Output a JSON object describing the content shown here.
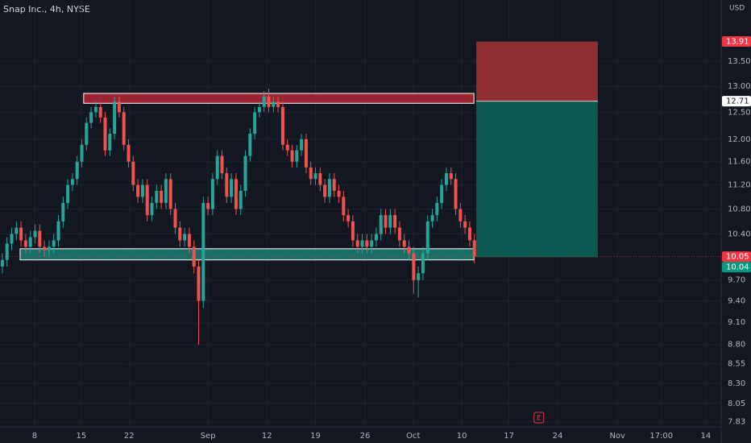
{
  "chart_data": {
    "type": "candlestick",
    "title": "Snap Inc., 4h, NYSE",
    "currency": "USD",
    "log_scale": true,
    "grid": true,
    "up_color": "#26a69a",
    "down_color": "#ef5350",
    "ylim": [
      7.77,
      14.81
    ],
    "yticks": [
      {
        "value": 13.5,
        "label": "13.50"
      },
      {
        "value": 13,
        "label": "13.00"
      },
      {
        "value": 12.5,
        "label": "12.50"
      },
      {
        "value": 12,
        "label": "12.00"
      },
      {
        "value": 11.6,
        "label": "11.60"
      },
      {
        "value": 11.2,
        "label": "11.20"
      },
      {
        "value": 10.8,
        "label": "10.80"
      },
      {
        "value": 10.4,
        "label": "10.40"
      },
      {
        "value": 9.7,
        "label": "9.70"
      },
      {
        "value": 9.4,
        "label": "9.40"
      },
      {
        "value": 9.1,
        "label": "9.10"
      },
      {
        "value": 8.8,
        "label": "8.80"
      },
      8.55,
      {
        "value": 8.3,
        "label": "8.30"
      },
      8.05,
      7.83
    ],
    "xlim": [
      -0.5,
      153.8
    ],
    "xticks": [
      {
        "value": 6.9,
        "label": "8"
      },
      {
        "value": 16.9,
        "label": "15"
      },
      {
        "value": 27.1,
        "label": "22"
      },
      {
        "value": 44,
        "label": "Sep"
      },
      {
        "value": 56.6,
        "label": "12"
      },
      {
        "value": 67,
        "label": "19"
      },
      {
        "value": 77.6,
        "label": "26"
      },
      {
        "value": 87.9,
        "label": "Oct"
      },
      {
        "value": 98.3,
        "label": "10"
      },
      {
        "value": 108.4,
        "label": "17"
      },
      {
        "value": 118.8,
        "label": "24"
      },
      {
        "value": 131.6,
        "label": "Nov"
      },
      {
        "value": 141,
        "label": "17:00"
      },
      {
        "value": 150.5,
        "label": "14"
      }
    ],
    "candles": {
      "open": [
        9.9,
        10.0,
        10.25,
        10.4,
        10.5,
        10.3,
        10.2,
        10.35,
        10.45,
        10.2,
        10.15,
        10.2,
        10.3,
        10.6,
        10.9,
        11.2,
        11.3,
        11.6,
        11.9,
        12.3,
        12.5,
        12.6,
        12.4,
        11.8,
        12.1,
        12.7,
        12.5,
        11.9,
        11.6,
        11.2,
        11.0,
        11.2,
        10.7,
        10.9,
        11.1,
        10.9,
        11.3,
        10.8,
        10.5,
        10.3,
        10.4,
        10.2,
        9.9,
        9.4,
        10.9,
        10.8,
        11.3,
        11.7,
        11.4,
        11.0,
        11.3,
        10.8,
        11.1,
        11.7,
        12.1,
        12.5,
        12.6,
        12.8,
        12.6,
        12.7,
        12.6,
        11.9,
        11.8,
        11.6,
        11.8,
        12.0,
        11.5,
        11.3,
        11.4,
        11.2,
        11.0,
        11.3,
        11.1,
        11.0,
        10.7,
        10.6,
        10.3,
        10.2,
        10.3,
        10.2,
        10.3,
        10.4,
        10.7,
        10.5,
        10.7,
        10.5,
        10.3,
        10.2,
        10.1,
        9.7,
        9.8,
        10.1,
        10.6,
        10.7,
        10.9,
        11.2,
        11.4,
        11.3,
        10.8,
        10.6,
        10.5,
        10.3
      ],
      "high": [
        10.1,
        10.35,
        10.5,
        10.6,
        10.6,
        10.4,
        10.45,
        10.55,
        10.55,
        10.3,
        10.3,
        10.4,
        10.7,
        11.0,
        11.3,
        11.4,
        11.7,
        12.0,
        12.4,
        12.6,
        12.7,
        12.7,
        12.5,
        12.2,
        12.8,
        12.8,
        12.6,
        12.0,
        11.7,
        11.3,
        11.3,
        11.3,
        11.0,
        11.2,
        11.2,
        11.4,
        11.4,
        10.9,
        10.6,
        10.5,
        10.5,
        10.3,
        10.0,
        11.0,
        11.0,
        11.4,
        11.8,
        11.8,
        11.5,
        11.4,
        11.4,
        11.2,
        11.8,
        12.2,
        12.6,
        12.7,
        12.9,
        12.95,
        12.8,
        12.8,
        12.7,
        12.0,
        11.9,
        11.9,
        12.1,
        12.1,
        11.6,
        11.5,
        11.5,
        11.3,
        11.4,
        11.4,
        11.2,
        11.1,
        10.8,
        10.7,
        10.4,
        10.4,
        10.4,
        10.4,
        10.5,
        10.8,
        10.8,
        10.8,
        10.8,
        10.6,
        10.4,
        10.3,
        10.2,
        9.9,
        10.2,
        10.7,
        10.8,
        11.0,
        11.3,
        11.5,
        11.5,
        11.4,
        10.9,
        10.7,
        10.6,
        10.4
      ],
      "low": [
        9.8,
        9.9,
        10.15,
        10.3,
        10.2,
        10.1,
        10.1,
        10.25,
        10.1,
        10.05,
        10.05,
        10.1,
        10.2,
        10.5,
        10.8,
        11.1,
        11.2,
        11.5,
        11.8,
        12.2,
        12.4,
        12.3,
        11.7,
        11.7,
        12.0,
        12.4,
        11.8,
        11.5,
        11.1,
        10.9,
        10.9,
        10.6,
        10.6,
        10.8,
        10.8,
        10.8,
        10.7,
        10.4,
        10.2,
        10.2,
        10.1,
        9.8,
        8.8,
        9.3,
        10.7,
        10.7,
        11.2,
        11.3,
        10.9,
        10.9,
        10.7,
        10.7,
        11.0,
        11.6,
        12.0,
        12.4,
        12.5,
        12.5,
        12.5,
        12.5,
        11.8,
        11.7,
        11.5,
        11.5,
        11.7,
        11.4,
        11.2,
        11.2,
        11.1,
        10.9,
        10.9,
        11.0,
        10.9,
        10.6,
        10.5,
        10.2,
        10.1,
        10.1,
        10.1,
        10.1,
        10.2,
        10.3,
        10.4,
        10.4,
        10.4,
        10.2,
        10.1,
        10.0,
        9.5,
        9.45,
        9.7,
        10.0,
        10.5,
        10.6,
        10.8,
        11.1,
        11.2,
        10.7,
        10.5,
        10.4,
        10.2,
        9.95
      ],
      "close": [
        10.0,
        10.25,
        10.4,
        10.5,
        10.3,
        10.2,
        10.35,
        10.45,
        10.2,
        10.15,
        10.2,
        10.3,
        10.6,
        10.9,
        11.2,
        11.3,
        11.6,
        11.9,
        12.3,
        12.5,
        12.6,
        12.4,
        11.8,
        12.1,
        12.7,
        12.5,
        11.9,
        11.6,
        11.2,
        11.0,
        11.2,
        10.7,
        10.9,
        11.1,
        10.9,
        11.3,
        10.8,
        10.5,
        10.3,
        10.4,
        10.2,
        9.9,
        9.4,
        10.9,
        10.8,
        11.3,
        11.7,
        11.4,
        11.0,
        11.3,
        10.8,
        11.1,
        11.7,
        12.1,
        12.5,
        12.6,
        12.8,
        12.6,
        12.7,
        12.6,
        11.9,
        11.8,
        11.6,
        11.8,
        12.0,
        11.5,
        11.3,
        11.4,
        11.2,
        11.0,
        11.3,
        11.1,
        11.0,
        10.7,
        10.6,
        10.3,
        10.2,
        10.3,
        10.2,
        10.3,
        10.4,
        10.7,
        10.5,
        10.7,
        10.5,
        10.3,
        10.2,
        10.1,
        9.7,
        9.8,
        10.1,
        10.6,
        10.7,
        10.9,
        11.2,
        11.4,
        11.3,
        10.8,
        10.6,
        10.5,
        10.3,
        10.05
      ]
    },
    "zones": [
      {
        "start": 17.4,
        "end": 100.9,
        "low": 12.67,
        "high": 12.86,
        "color": "#b22833"
      },
      {
        "start": 3.8,
        "end": 100.9,
        "low": 10.0,
        "high": 10.17,
        "color": "#1b7f72"
      }
    ],
    "position": {
      "start": 101.4,
      "end": 127.4,
      "entry": 12.71,
      "stop": 13.91,
      "target": 10.04,
      "stop_color": "#8f2f33",
      "target_color": "#0c5a52"
    },
    "price_labels": [
      {
        "value": 13.91,
        "color": "#f23645"
      },
      {
        "value": 12.71,
        "color": "#ffffff"
      },
      {
        "value": 10.05,
        "color": "#f23645"
      },
      {
        "value": 10.04,
        "color": "#089981"
      }
    ],
    "earnings": {
      "label": "E",
      "x": 114.8
    }
  }
}
